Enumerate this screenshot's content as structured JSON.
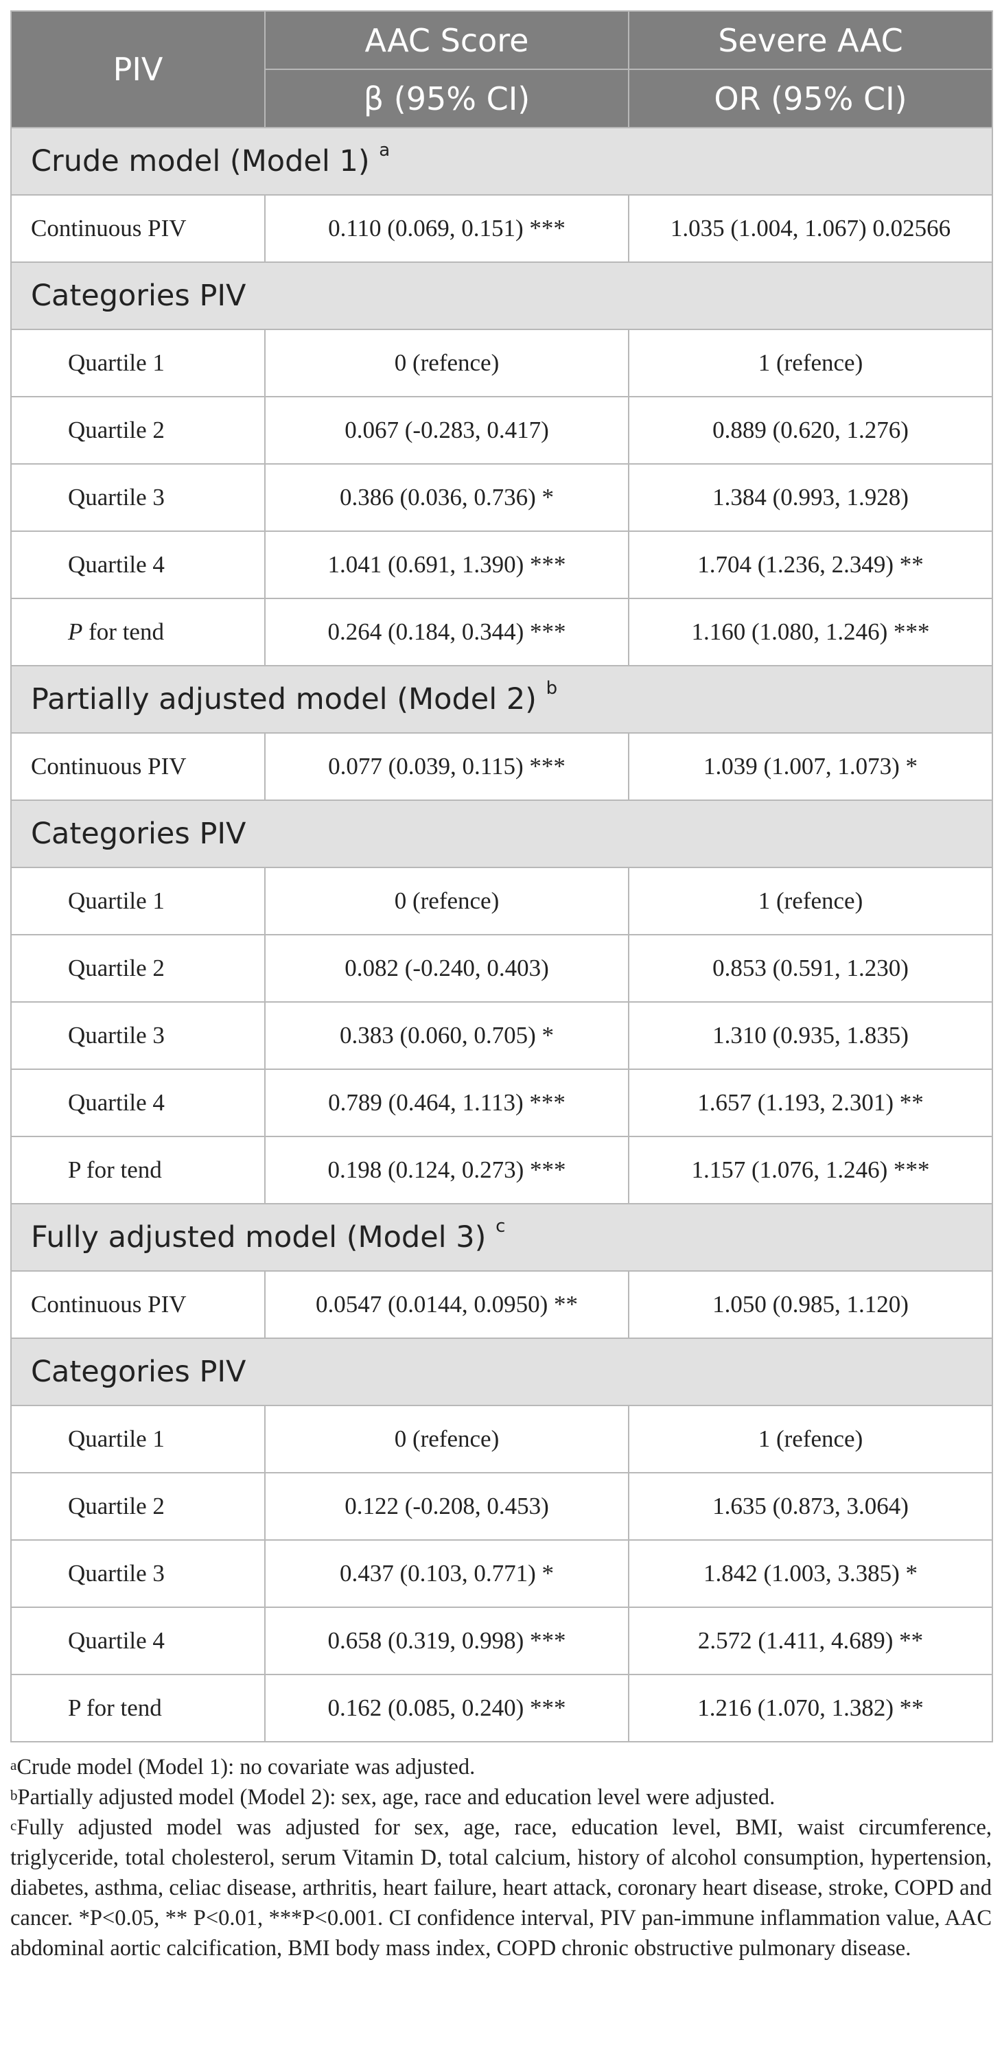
{
  "header": {
    "col1": "PIV",
    "col2_line1": "AAC Score",
    "col2_line2": "β (95% CI)",
    "col3_line1": "Severe AAC",
    "col3_line2": "OR (95% CI)"
  },
  "sections": [
    {
      "title": "Crude model (Model 1)",
      "sup": "a",
      "continuous": {
        "label": "Continuous PIV",
        "aac": "0.110 (0.069, 0.151) ***",
        "severe": "1.035 (1.004, 1.067) 0.02566"
      },
      "categories_title": "Categories PIV",
      "rows": [
        {
          "label": "Quartile 1",
          "aac": "0 (refence)",
          "severe": "1 (refence)"
        },
        {
          "label": "Quartile 2",
          "aac": "0.067 (-0.283, 0.417)",
          "severe": "0.889 (0.620, 1.276)"
        },
        {
          "label": "Quartile 3",
          "aac": "0.386 (0.036, 0.736) *",
          "severe": "1.384 (0.993, 1.928)"
        },
        {
          "label": "Quartile 4",
          "aac": "1.041 (0.691, 1.390) ***",
          "severe": "1.704 (1.236, 2.349) **"
        },
        {
          "label_p": "P",
          "label_rest": " for tend",
          "aac": "0.264 (0.184, 0.344) ***",
          "severe": "1.160 (1.080, 1.246) ***"
        }
      ]
    },
    {
      "title": "Partially adjusted model (Model 2)",
      "sup": "b",
      "continuous": {
        "label": "Continuous PIV",
        "aac": "0.077 (0.039, 0.115) ***",
        "severe": "1.039 (1.007, 1.073) *"
      },
      "categories_title": "Categories PIV",
      "rows": [
        {
          "label": "Quartile 1",
          "aac": "0 (refence)",
          "severe": "1 (refence)"
        },
        {
          "label": "Quartile 2",
          "aac": "0.082 (-0.240, 0.403)",
          "severe": "0.853 (0.591, 1.230)"
        },
        {
          "label": "Quartile 3",
          "aac": "0.383 (0.060, 0.705) *",
          "severe": "1.310 (0.935, 1.835)"
        },
        {
          "label": "Quartile 4",
          "aac": "0.789 (0.464, 1.113) ***",
          "severe": "1.657 (1.193, 2.301) **"
        },
        {
          "label": "P for tend",
          "aac": "0.198 (0.124, 0.273) ***",
          "severe": "1.157 (1.076, 1.246) ***"
        }
      ]
    },
    {
      "title": "Fully adjusted model (Model 3)",
      "sup": "c",
      "continuous": {
        "label": "Continuous PIV",
        "aac": "0.0547 (0.0144, 0.0950) **",
        "severe": "1.050 (0.985, 1.120)"
      },
      "categories_title": "Categories PIV",
      "rows": [
        {
          "label": "Quartile 1",
          "aac": "0 (refence)",
          "severe": "1 (refence)"
        },
        {
          "label": "Quartile 2",
          "aac": "0.122 (-0.208, 0.453)",
          "severe": "1.635 (0.873, 3.064)"
        },
        {
          "label": "Quartile 3",
          "aac": "0.437 (0.103, 0.771) *",
          "severe": "1.842 (1.003, 3.385) *"
        },
        {
          "label": "Quartile 4",
          "aac": "0.658 (0.319, 0.998) ***",
          "severe": "2.572 (1.411, 4.689) **"
        },
        {
          "label": "P for tend",
          "aac": "0.162 (0.085, 0.240) ***",
          "severe": "1.216 (1.070, 1.382) **"
        }
      ]
    }
  ],
  "footnotes": [
    {
      "sup": "a",
      "text": "Crude model (Model 1): no covariate was adjusted."
    },
    {
      "sup": "b",
      "text": "Partially adjusted model (Model 2): sex, age, race and education level were adjusted."
    },
    {
      "sup": "c",
      "text": "Fully adjusted model was adjusted for sex, age, race, education level, BMI, waist circumference, triglyceride, total cholesterol, serum Vitamin D, total calcium, history of alcohol consumption, hypertension, diabetes, asthma, celiac disease, arthritis, heart failure, heart attack, coronary heart disease, stroke, COPD and cancer. *P<0.05, ** P<0.01, ***P<0.001. CI confidence interval, PIV pan-immune inflammation value, AAC abdominal aortic calcification, BMI body mass index, COPD chronic obstructive pulmonary disease."
    }
  ]
}
